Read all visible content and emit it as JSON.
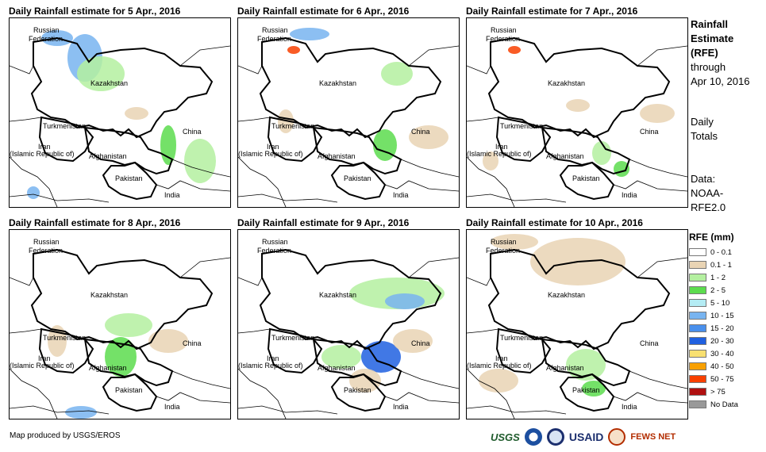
{
  "panels": [
    {
      "title": "Daily Rainfall estimate for 5 Apr., 2016"
    },
    {
      "title": "Daily Rainfall estimate for 6 Apr., 2016"
    },
    {
      "title": "Daily Rainfall estimate for 7 Apr., 2016"
    },
    {
      "title": "Daily Rainfall estimate for 8 Apr., 2016"
    },
    {
      "title": "Daily Rainfall estimate for 9 Apr., 2016"
    },
    {
      "title": "Daily Rainfall estimate for 10 Apr., 2016"
    }
  ],
  "map_labels": {
    "russia_1": "Russian",
    "russia_2": "Federation",
    "kazakhstan": "Kazakhstan",
    "turkmenistan": "Turkmenistan",
    "china": "China",
    "iran_1": "Iran",
    "iran_2": "(Islamic Republic of)",
    "afghanistan": "Afghanistan",
    "pakistan": "Pakistan",
    "india": "India"
  },
  "side_info": {
    "title_1": "Rainfall",
    "title_2": "Estimate",
    "title_3": "(RFE)",
    "through": "through",
    "date": "Apr 10, 2016",
    "daily_1": "Daily",
    "daily_2": "Totals",
    "data_1": "Data:",
    "data_2": "NOAA-",
    "data_3": "RFE2.0"
  },
  "legend": {
    "title": "RFE (mm)",
    "items": [
      {
        "label": "0 - 0.1",
        "color": "#ffffff"
      },
      {
        "label": "0.1 - 1",
        "color": "#e9d4b4"
      },
      {
        "label": "1 - 2",
        "color": "#b4f0a0"
      },
      {
        "label": "2 - 5",
        "color": "#5cdc4e"
      },
      {
        "label": "5 - 10",
        "color": "#b4ecf4"
      },
      {
        "label": "10 - 15",
        "color": "#78b4f0"
      },
      {
        "label": "15 - 20",
        "color": "#4a90ec"
      },
      {
        "label": "20 - 30",
        "color": "#2060e0"
      },
      {
        "label": "30 - 40",
        "color": "#f8e070"
      },
      {
        "label": "40 - 50",
        "color": "#f8a000"
      },
      {
        "label": "50 - 75",
        "color": "#f84000"
      },
      {
        "label": "> 75",
        "color": "#b01010"
      },
      {
        "label": "No Data",
        "color": "#999999"
      }
    ]
  },
  "credit": "Map produced by USGS/EROS",
  "logos": {
    "usgs": "USGS",
    "usaid": "USAID",
    "fews": "FEWS NET"
  }
}
